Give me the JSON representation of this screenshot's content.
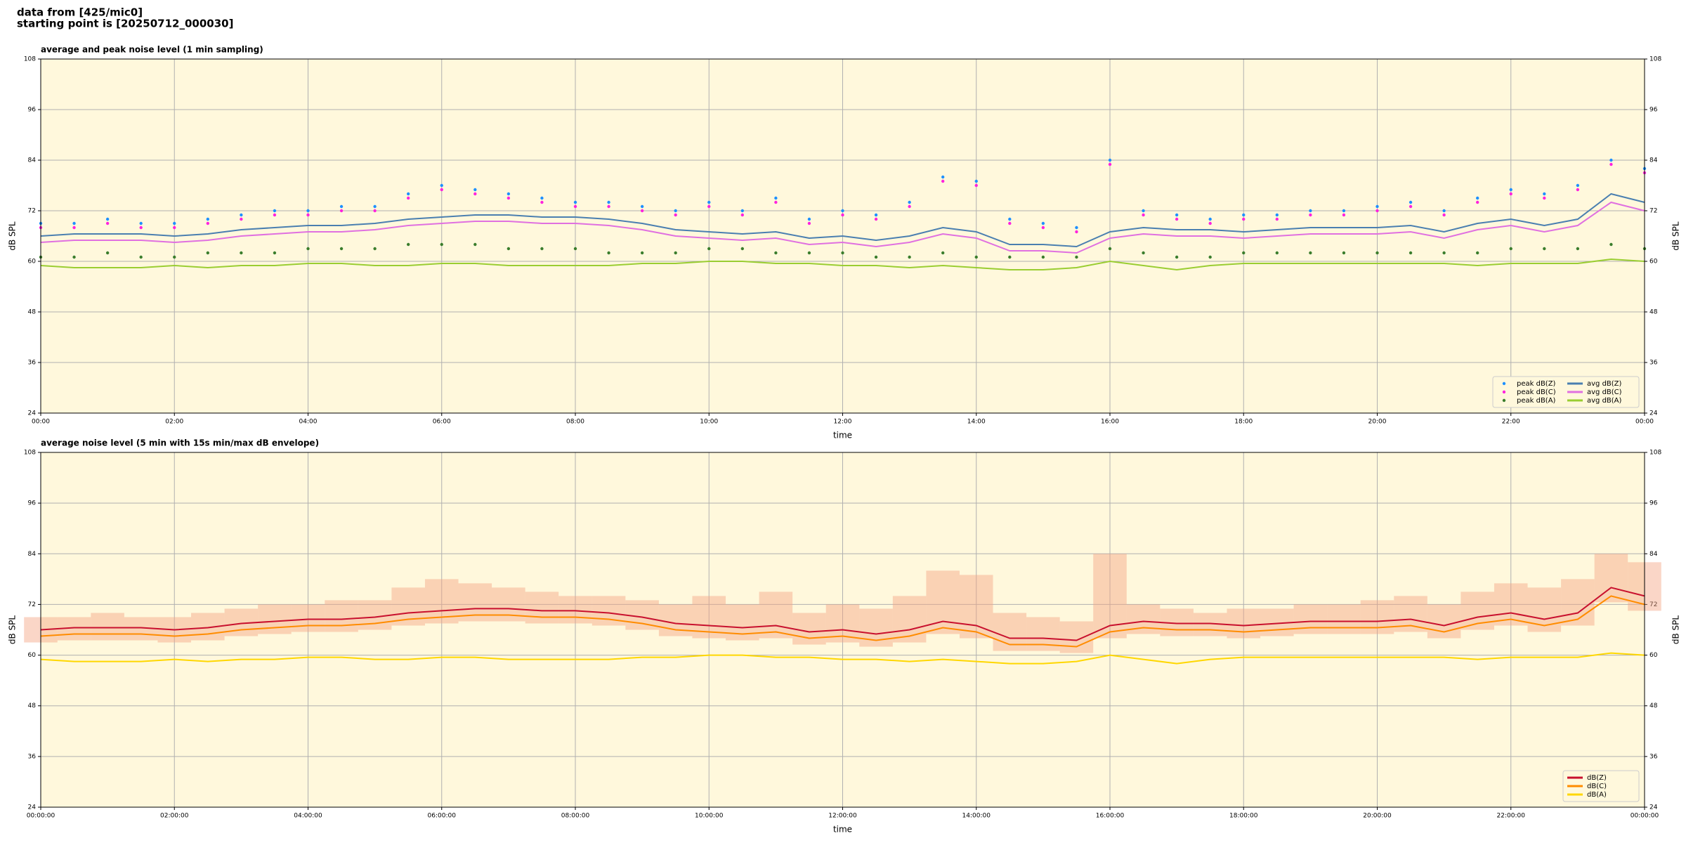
{
  "header": {
    "lines": [
      "data from [425/mic0]",
      "starting point is [20250712_000030]"
    ]
  },
  "chart_data": [
    {
      "type": "line",
      "title": "average and peak noise level (1 min sampling)",
      "x_label": "time",
      "y_label": "dB SPL",
      "xlim": [
        0,
        24
      ],
      "ylim": [
        24,
        108
      ],
      "yticks": [
        24,
        36,
        48,
        60,
        72,
        84,
        96,
        108
      ],
      "xticks": [
        {
          "value": 0,
          "label": "00:00"
        },
        {
          "value": 2,
          "label": "02:00"
        },
        {
          "value": 4,
          "label": "04:00"
        },
        {
          "value": 6,
          "label": "06:00"
        },
        {
          "value": 8,
          "label": "08:00"
        },
        {
          "value": 10,
          "label": "10:00"
        },
        {
          "value": 12,
          "label": "12:00"
        },
        {
          "value": 14,
          "label": "14:00"
        },
        {
          "value": 16,
          "label": "16:00"
        },
        {
          "value": 18,
          "label": "18:00"
        },
        {
          "value": 20,
          "label": "20:00"
        },
        {
          "value": 22,
          "label": "22:00"
        },
        {
          "value": 24,
          "label": "00:00"
        }
      ],
      "grid": true,
      "background": "#fff8dc",
      "legend": "lower right",
      "legend_columns": 2,
      "x": [
        0,
        0.5,
        1,
        1.5,
        2,
        2.5,
        3,
        3.5,
        4,
        4.5,
        5,
        5.5,
        6,
        6.5,
        7,
        7.5,
        8,
        8.5,
        9,
        9.5,
        10,
        10.5,
        11,
        11.5,
        12,
        12.5,
        13,
        13.5,
        14,
        14.5,
        15,
        15.5,
        16,
        16.5,
        17,
        17.5,
        18,
        18.5,
        19,
        19.5,
        20,
        20.5,
        21,
        21.5,
        22,
        22.5,
        23,
        23.5,
        24
      ],
      "series": [
        {
          "name": "peak dB(Z)",
          "color": "#1e90ff",
          "style": "marker",
          "values": [
            69,
            69,
            70,
            69,
            69,
            70,
            71,
            72,
            72,
            73,
            73,
            76,
            78,
            77,
            76,
            75,
            74,
            74,
            73,
            72,
            74,
            72,
            75,
            70,
            72,
            71,
            74,
            80,
            79,
            70,
            69,
            68,
            84,
            72,
            71,
            70,
            71,
            71,
            72,
            72,
            73,
            74,
            72,
            75,
            77,
            76,
            78,
            84,
            82
          ]
        },
        {
          "name": "peak dB(C)",
          "color": "#ff22dd",
          "style": "marker",
          "values": [
            68,
            68,
            69,
            68,
            68,
            69,
            70,
            71,
            71,
            72,
            72,
            75,
            77,
            76,
            75,
            74,
            73,
            73,
            72,
            71,
            73,
            71,
            74,
            69,
            71,
            70,
            73,
            79,
            78,
            69,
            68,
            67,
            83,
            71,
            70,
            69,
            70,
            70,
            71,
            71,
            72,
            73,
            71,
            74,
            76,
            75,
            77,
            83,
            81
          ]
        },
        {
          "name": "peak dB(A)",
          "color": "#3a7d2c",
          "style": "marker",
          "values": [
            61,
            61,
            62,
            61,
            61,
            62,
            62,
            62,
            63,
            63,
            63,
            64,
            64,
            64,
            63,
            63,
            63,
            62,
            62,
            62,
            63,
            63,
            62,
            62,
            62,
            61,
            61,
            62,
            61,
            61,
            61,
            61,
            63,
            62,
            61,
            61,
            62,
            62,
            62,
            62,
            62,
            62,
            62,
            62,
            63,
            63,
            63,
            64,
            63
          ]
        },
        {
          "name": "avg dB(Z)",
          "color": "#4a7fb0",
          "style": "line",
          "values": [
            66,
            66.5,
            66.5,
            66.5,
            66,
            66.5,
            67.5,
            68,
            68.5,
            68.5,
            69,
            70,
            70.5,
            71,
            71,
            70.5,
            70.5,
            70,
            69,
            67.5,
            67,
            66.5,
            67,
            65.5,
            66,
            65,
            66,
            68,
            67,
            64,
            64,
            63.5,
            67,
            68,
            67.5,
            67.5,
            67,
            67.5,
            68,
            68,
            68,
            68.5,
            67,
            69,
            70,
            68.5,
            70,
            76,
            74
          ]
        },
        {
          "name": "avg dB(C)",
          "color": "#e070e0",
          "style": "line",
          "values": [
            64.5,
            65,
            65,
            65,
            64.5,
            65,
            66,
            66.5,
            67,
            67,
            67.5,
            68.5,
            69,
            69.5,
            69.5,
            69,
            69,
            68.5,
            67.5,
            66,
            65.5,
            65,
            65.5,
            64,
            64.5,
            63.5,
            64.5,
            66.5,
            65.5,
            62.5,
            62.5,
            62,
            65.5,
            66.5,
            66,
            66,
            65.5,
            66,
            66.5,
            66.5,
            66.5,
            67,
            65.5,
            67.5,
            68.5,
            67,
            68.5,
            74,
            72
          ]
        },
        {
          "name": "avg dB(A)",
          "color": "#9acd32",
          "style": "line",
          "values": [
            59,
            58.5,
            58.5,
            58.5,
            59,
            58.5,
            59,
            59,
            59.5,
            59.5,
            59,
            59,
            59.5,
            59.5,
            59,
            59,
            59,
            59,
            59.5,
            59.5,
            60,
            60,
            59.5,
            59.5,
            59,
            59,
            58.5,
            59,
            58.5,
            58,
            58,
            58.5,
            60,
            59,
            58,
            59,
            59.5,
            59.5,
            59.5,
            59.5,
            59.5,
            59.5,
            59.5,
            59,
            59.5,
            59.5,
            59.5,
            60.5,
            60
          ]
        }
      ]
    },
    {
      "type": "line",
      "title": "average noise level (5 min with 15s min/max dB envelope)",
      "x_label": "time",
      "y_label": "dB SPL",
      "xlim": [
        0,
        24
      ],
      "ylim": [
        24,
        108
      ],
      "yticks": [
        24,
        36,
        48,
        60,
        72,
        84,
        96,
        108
      ],
      "xticks": [
        {
          "value": 0,
          "label": "00:00:00"
        },
        {
          "value": 2,
          "label": "02:00:00"
        },
        {
          "value": 4,
          "label": "04:00:00"
        },
        {
          "value": 6,
          "label": "06:00:00"
        },
        {
          "value": 8,
          "label": "08:00:00"
        },
        {
          "value": 10,
          "label": "10:00:00"
        },
        {
          "value": 12,
          "label": "12:00:00"
        },
        {
          "value": 14,
          "label": "14:00:00"
        },
        {
          "value": 16,
          "label": "16:00:00"
        },
        {
          "value": 18,
          "label": "18:00:00"
        },
        {
          "value": 20,
          "label": "20:00:00"
        },
        {
          "value": 22,
          "label": "22:00:00"
        },
        {
          "value": 24,
          "label": "00:00:00"
        }
      ],
      "grid": true,
      "background": "#fff8dc",
      "legend": "lower right",
      "legend_columns": 1,
      "x": [
        0,
        0.5,
        1,
        1.5,
        2,
        2.5,
        3,
        3.5,
        4,
        4.5,
        5,
        5.5,
        6,
        6.5,
        7,
        7.5,
        8,
        8.5,
        9,
        9.5,
        10,
        10.5,
        11,
        11.5,
        12,
        12.5,
        13,
        13.5,
        14,
        14.5,
        15,
        15.5,
        16,
        16.5,
        17,
        17.5,
        18,
        18.5,
        19,
        19.5,
        20,
        20.5,
        21,
        21.5,
        22,
        22.5,
        23,
        23.5,
        24
      ],
      "envelope": {
        "color": "#f4a582",
        "min": [
          63,
          63.5,
          63.5,
          63.5,
          63,
          63.5,
          64.5,
          65,
          65.5,
          65.5,
          66,
          67,
          67.5,
          68,
          68,
          67.5,
          67.5,
          67,
          66,
          64.5,
          64,
          63.5,
          64,
          62.5,
          63,
          62,
          63,
          65,
          64,
          61,
          61,
          60.5,
          64,
          65,
          64.5,
          64.5,
          64,
          64.5,
          65,
          65,
          65,
          65.5,
          64,
          66,
          67,
          65.5,
          67,
          72.5,
          70.5
        ],
        "max": [
          69,
          69,
          70,
          69,
          69,
          70,
          71,
          72,
          72,
          73,
          73,
          76,
          78,
          77,
          76,
          75,
          74,
          74,
          73,
          72,
          74,
          72,
          75,
          70,
          72,
          71,
          74,
          80,
          79,
          70,
          69,
          68,
          84,
          72,
          71,
          70,
          71,
          71,
          72,
          72,
          73,
          74,
          72,
          75,
          77,
          76,
          78,
          84,
          82
        ]
      },
      "series": [
        {
          "name": "dB(Z)",
          "color": "#c8102e",
          "style": "line",
          "values": [
            66,
            66.5,
            66.5,
            66.5,
            66,
            66.5,
            67.5,
            68,
            68.5,
            68.5,
            69,
            70,
            70.5,
            71,
            71,
            70.5,
            70.5,
            70,
            69,
            67.5,
            67,
            66.5,
            67,
            65.5,
            66,
            65,
            66,
            68,
            67,
            64,
            64,
            63.5,
            67,
            68,
            67.5,
            67.5,
            67,
            67.5,
            68,
            68,
            68,
            68.5,
            67,
            69,
            70,
            68.5,
            70,
            76,
            74
          ]
        },
        {
          "name": "dB(C)",
          "color": "#ff8c00",
          "style": "line",
          "values": [
            64.5,
            65,
            65,
            65,
            64.5,
            65,
            66,
            66.5,
            67,
            67,
            67.5,
            68.5,
            69,
            69.5,
            69.5,
            69,
            69,
            68.5,
            67.5,
            66,
            65.5,
            65,
            65.5,
            64,
            64.5,
            63.5,
            64.5,
            66.5,
            65.5,
            62.5,
            62.5,
            62,
            65.5,
            66.5,
            66,
            66,
            65.5,
            66,
            66.5,
            66.5,
            66.5,
            67,
            65.5,
            67.5,
            68.5,
            67,
            68.5,
            74,
            72
          ]
        },
        {
          "name": "dB(A)",
          "color": "#ffd700",
          "style": "line",
          "values": [
            59,
            58.5,
            58.5,
            58.5,
            59,
            58.5,
            59,
            59,
            59.5,
            59.5,
            59,
            59,
            59.5,
            59.5,
            59,
            59,
            59,
            59,
            59.5,
            59.5,
            60,
            60,
            59.5,
            59.5,
            59,
            59,
            58.5,
            59,
            58.5,
            58,
            58,
            58.5,
            60,
            59,
            58,
            59,
            59.5,
            59.5,
            59.5,
            59.5,
            59.5,
            59.5,
            59.5,
            59,
            59.5,
            59.5,
            59.5,
            60.5,
            60
          ]
        }
      ]
    }
  ]
}
